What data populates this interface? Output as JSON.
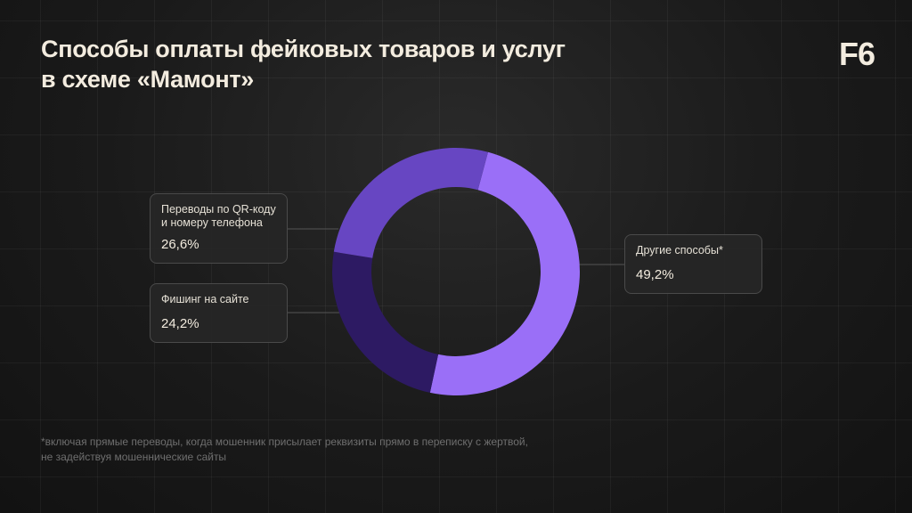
{
  "title": {
    "line1": "Способы оплаты фейковых товаров и услуг",
    "line2": "в схеме «Мамонт»"
  },
  "logo": "F6",
  "chart_data": {
    "type": "pie",
    "donut": true,
    "slices": [
      {
        "label_lines": [
          "Другие способы*"
        ],
        "value": 49.2,
        "display": "49,2%",
        "color": "#9a6ff7"
      },
      {
        "label_lines": [
          "Фишинг на сайте"
        ],
        "value": 24.2,
        "display": "24,2%",
        "color": "#2d1a63"
      },
      {
        "label_lines": [
          "Переводы по QR-коду",
          "и номеру телефона"
        ],
        "value": 26.6,
        "display": "26,6%",
        "color": "#6746c2"
      }
    ]
  },
  "footnote": {
    "line1": "*включая прямые переводы, когда мошенник присылает реквизиты прямо в переписку с жертвой,",
    "line2": "не задействуя мошеннические сайты"
  },
  "colors": {
    "background": "#1a1a1a",
    "accent_light": "#9a6ff7",
    "accent_mid": "#6746c2",
    "accent_dark": "#2d1a63",
    "text": "#f3ecdf"
  }
}
